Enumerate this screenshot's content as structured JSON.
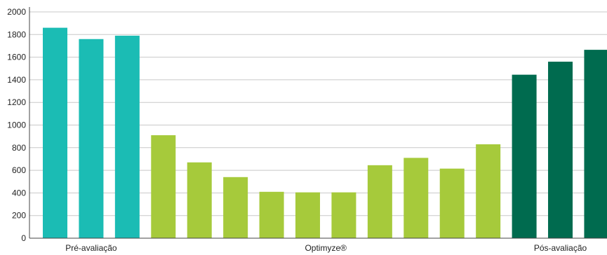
{
  "chart_data": {
    "type": "bar",
    "ylim": [
      0,
      2000
    ],
    "yticks": [
      0,
      200,
      400,
      600,
      800,
      1000,
      1200,
      1400,
      1600,
      1800,
      2000
    ],
    "ytick_labels": [
      "0",
      "200",
      "400",
      "600",
      "800",
      "1000",
      "1200",
      "1400",
      "1600",
      "1800",
      "2000"
    ],
    "grid": true,
    "groups": [
      {
        "label": "Pré-avaliação",
        "color": "#1bbcb4",
        "values": [
          1860,
          1760,
          1790
        ]
      },
      {
        "label": "Optimyze®",
        "color": "#a6ca3b",
        "values": [
          910,
          670,
          540,
          410,
          405,
          405,
          645,
          710,
          615,
          830
        ]
      },
      {
        "label": "Pós-avaliação",
        "color": "#006b4f",
        "values": [
          1445,
          1560,
          1665
        ]
      }
    ]
  }
}
